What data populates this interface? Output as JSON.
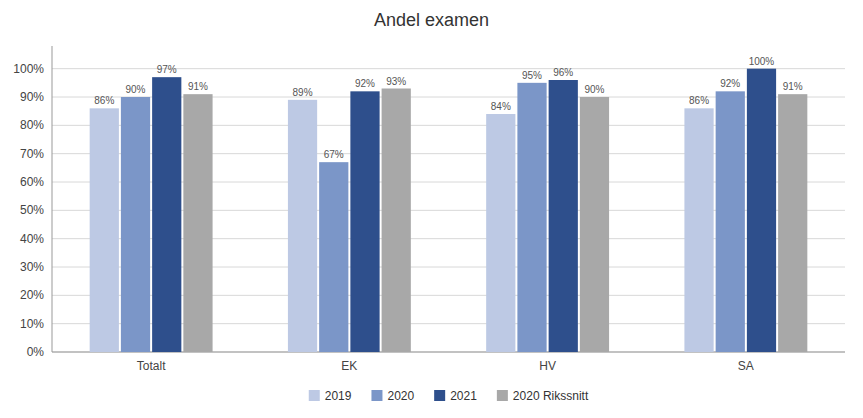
{
  "chart_data": {
    "type": "bar",
    "title": "Andel examen",
    "categories": [
      "Totalt",
      "EK",
      "HV",
      "SA"
    ],
    "series": [
      {
        "name": "2019",
        "color": "#bdc9e4",
        "values": [
          86,
          89,
          84,
          86
        ],
        "value_labels": [
          "86%",
          "89%",
          "84%",
          "86%"
        ]
      },
      {
        "name": "2020",
        "color": "#7b96c8",
        "values": [
          90,
          67,
          95,
          92
        ],
        "value_labels": [
          "90%",
          "67%",
          "95%",
          "92%"
        ]
      },
      {
        "name": "2021",
        "color": "#2e4f8c",
        "values": [
          97,
          92,
          96,
          100
        ],
        "value_labels": [
          "97%",
          "92%",
          "96%",
          "100%"
        ]
      },
      {
        "name": "2020 Rikssnitt",
        "color": "#a8a8a8",
        "values": [
          91,
          93,
          90,
          91
        ],
        "value_labels": [
          "91%",
          "93%",
          "90%",
          "91%"
        ]
      }
    ],
    "ylim": [
      0,
      108
    ],
    "yticks": [
      {
        "value": 0,
        "label": "0%"
      },
      {
        "value": 10,
        "label": "10%"
      },
      {
        "value": 20,
        "label": "20%"
      },
      {
        "value": 30,
        "label": "30%"
      },
      {
        "value": 40,
        "label": "40%"
      },
      {
        "value": 50,
        "label": "50%"
      },
      {
        "value": 60,
        "label": "60%"
      },
      {
        "value": 70,
        "label": "70%"
      },
      {
        "value": 80,
        "label": "80%"
      },
      {
        "value": 90,
        "label": "90%"
      },
      {
        "value": 100,
        "label": "100%"
      }
    ],
    "grid": true,
    "legend": "bottom",
    "data_labels": true
  }
}
